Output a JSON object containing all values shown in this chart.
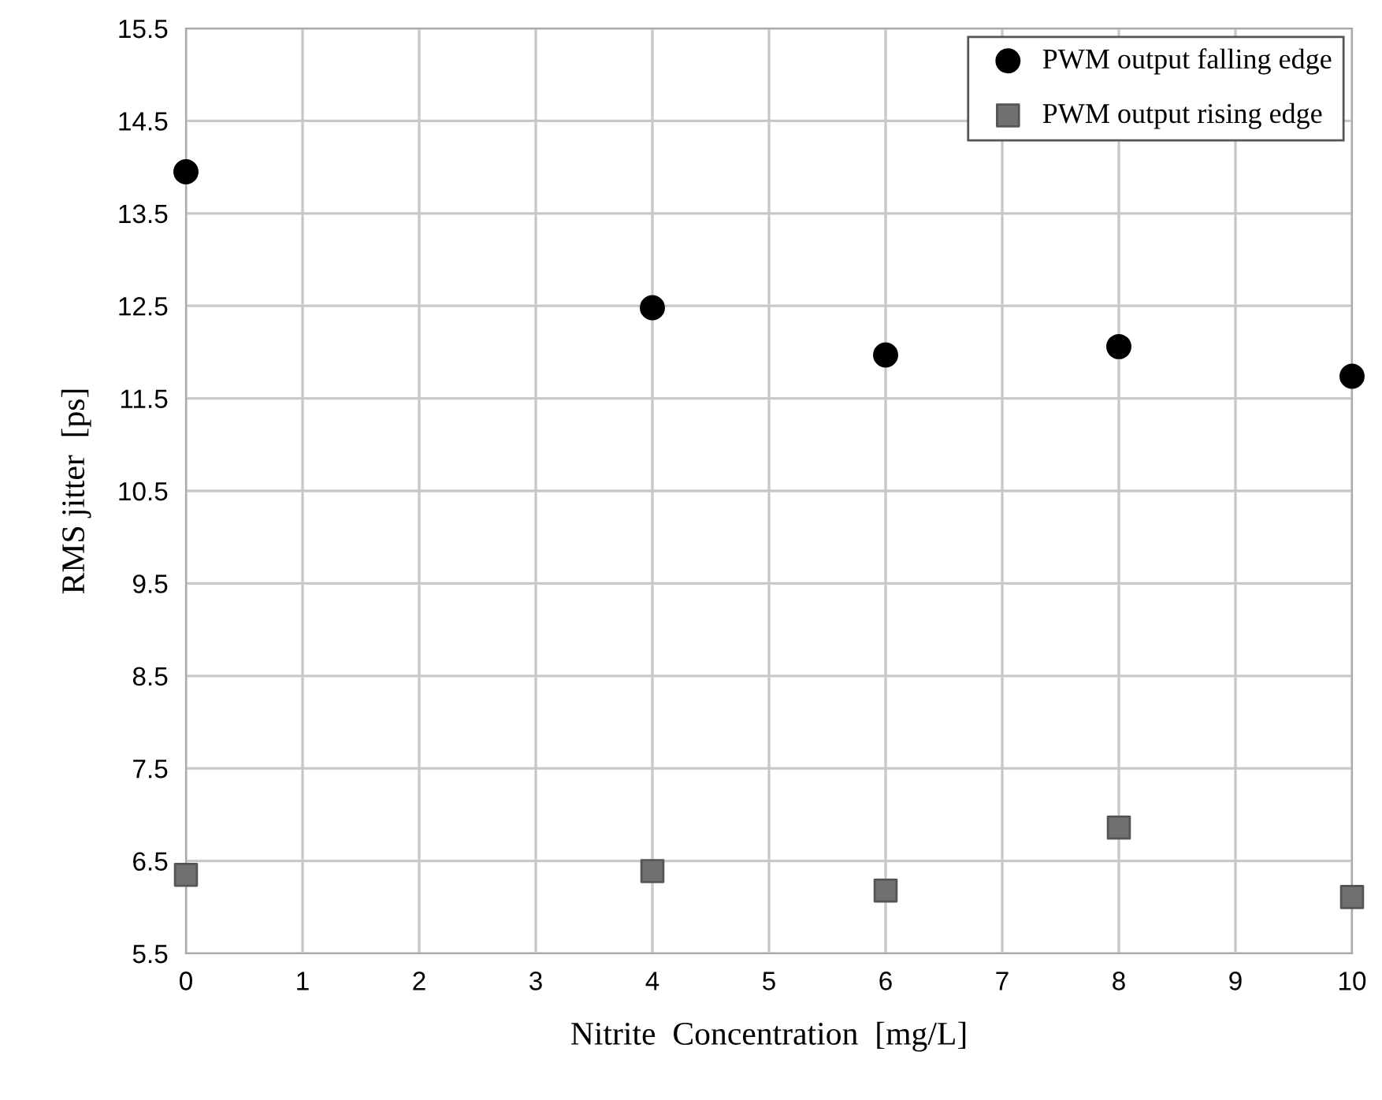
{
  "chart_data": {
    "type": "scatter",
    "xlabel": "Nitrite  Concentration  [mg/L]",
    "ylabel": "RMS jitter  [ps]",
    "x": [
      0,
      4,
      6,
      8,
      10
    ],
    "series": [
      {
        "name": "PWM output falling edge",
        "color": "#000000",
        "marker": "circle",
        "values": [
          13.95,
          12.48,
          11.97,
          12.06,
          11.74
        ]
      },
      {
        "name": "PWM output rising edge",
        "color": "#707070",
        "marker": "square",
        "values": [
          6.35,
          6.39,
          6.18,
          6.86,
          6.11
        ]
      }
    ],
    "xlim": [
      0,
      10
    ],
    "xticks": [
      0,
      1,
      2,
      3,
      4,
      5,
      6,
      7,
      8,
      9,
      10
    ],
    "ylim": [
      5.5,
      15.5
    ],
    "yticks": [
      5.5,
      6.5,
      7.5,
      8.5,
      9.5,
      10.5,
      11.5,
      12.5,
      13.5,
      14.5,
      15.5
    ],
    "grid": true,
    "legend": "top right"
  }
}
